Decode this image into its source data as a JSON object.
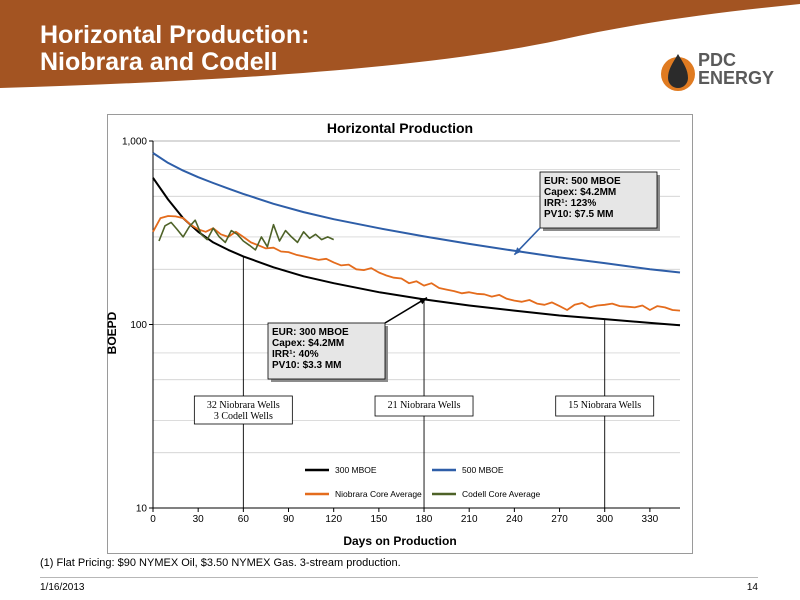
{
  "slide": {
    "title_line1": "Horizontal Production:",
    "title_line2": "Niobrara and Codell",
    "footnote": "(1) Flat Pricing: $90 NYMEX Oil, $3.50 NYMEX Gas. 3-stream production.",
    "date": "1/16/2013",
    "page_number": "14"
  },
  "logo": {
    "line1": "PDC",
    "line2": "ENERGY"
  },
  "colors": {
    "header_brown": "#a35422",
    "logo_orange": "#e07b21",
    "series_300": "#000000",
    "series_500": "#2e5ea8",
    "series_niobrara": "#e46c1d",
    "series_codell": "#4e6228"
  },
  "chart_data": {
    "type": "line",
    "title": "Horizontal Production",
    "xlabel": "Days on Production",
    "ylabel": "BOEPD",
    "y_scale": "log",
    "xlim": [
      0,
      350
    ],
    "ylim": [
      10,
      1000
    ],
    "x_ticks": [
      0,
      30,
      60,
      90,
      120,
      150,
      180,
      210,
      240,
      270,
      300,
      330
    ],
    "y_ticks": [
      {
        "value": 10,
        "label": "10"
      },
      {
        "value": 100,
        "label": "100"
      },
      {
        "value": 1000,
        "label": "1,000"
      }
    ],
    "legend_position": "bottom-center",
    "series": [
      {
        "name": "300 MBOE",
        "color": "#000000",
        "x": [
          0,
          10,
          20,
          30,
          40,
          50,
          60,
          80,
          100,
          120,
          150,
          180,
          210,
          240,
          270,
          300,
          330,
          350
        ],
        "y": [
          630,
          480,
          380,
          320,
          280,
          255,
          235,
          205,
          183,
          168,
          150,
          137,
          127,
          119,
          112,
          107,
          102,
          99
        ]
      },
      {
        "name": "500 MBOE",
        "color": "#2e5ea8",
        "x": [
          0,
          10,
          20,
          30,
          40,
          50,
          60,
          80,
          100,
          120,
          150,
          180,
          210,
          240,
          270,
          300,
          330,
          350
        ],
        "y": [
          860,
          760,
          690,
          635,
          590,
          550,
          515,
          455,
          410,
          375,
          335,
          302,
          275,
          252,
          232,
          216,
          200,
          192
        ]
      },
      {
        "name": "Niobrara Core Average",
        "color": "#e46c1d",
        "x": [
          0,
          5,
          10,
          15,
          20,
          25,
          30,
          35,
          40,
          45,
          50,
          55,
          60,
          65,
          70,
          75,
          80,
          85,
          90,
          95,
          100,
          105,
          110,
          115,
          120,
          125,
          130,
          135,
          140,
          145,
          150,
          155,
          160,
          165,
          170,
          175,
          180,
          185,
          190,
          195,
          200,
          205,
          210,
          215,
          220,
          225,
          230,
          235,
          240,
          245,
          250,
          255,
          260,
          265,
          270,
          275,
          280,
          285,
          290,
          295,
          300,
          305,
          310,
          315,
          320,
          325,
          330,
          335,
          340,
          345,
          350
        ],
        "y": [
          320,
          380,
          390,
          388,
          380,
          350,
          330,
          320,
          335,
          310,
          300,
          320,
          300,
          280,
          270,
          260,
          262,
          250,
          248,
          240,
          235,
          230,
          225,
          228,
          218,
          210,
          212,
          200,
          198,
          203,
          192,
          185,
          180,
          178,
          168,
          172,
          163,
          168,
          158,
          155,
          152,
          148,
          150,
          147,
          146,
          142,
          145,
          138,
          135,
          133,
          136,
          130,
          128,
          132,
          126,
          120,
          128,
          131,
          124,
          127,
          128,
          130,
          126,
          125,
          124,
          127,
          120,
          126,
          124,
          120,
          119
        ]
      },
      {
        "name": "Codell Core Average",
        "color": "#4e6228",
        "x": [
          4,
          8,
          12,
          16,
          20,
          24,
          28,
          32,
          36,
          40,
          44,
          48,
          52,
          56,
          60,
          64,
          68,
          72,
          76,
          80,
          84,
          88,
          92,
          96,
          100,
          104,
          108,
          112,
          116,
          120
        ],
        "y": [
          285,
          345,
          360,
          330,
          300,
          340,
          370,
          310,
          290,
          335,
          300,
          280,
          325,
          310,
          285,
          270,
          255,
          300,
          265,
          350,
          285,
          325,
          300,
          280,
          320,
          295,
          310,
          290,
          300,
          290
        ]
      }
    ],
    "annotations": [
      {
        "label": "EUR: 500 MBOE",
        "lines": [
          "EUR: 500 MBOE",
          "Capex: $4.2MM",
          "IRR¹: 123%",
          "PV10: $7.5 MM"
        ],
        "arrow_to": {
          "x": 240,
          "y": 240
        }
      },
      {
        "label": "EUR: 300 MBOE",
        "lines": [
          "EUR: 300 MBOE",
          "Capex: $4.2MM",
          "IRR¹: 40%",
          "PV10: $3.3 MM"
        ],
        "arrow_to": {
          "x": 182,
          "y": 140
        }
      }
    ],
    "well_labels": [
      {
        "lines": [
          "32 Niobrara Wells",
          "3 Codell Wells"
        ],
        "marker_x": 60
      },
      {
        "lines": [
          "21 Niobrara Wells"
        ],
        "marker_x": 180
      },
      {
        "lines": [
          "15 Niobrara Wells"
        ],
        "marker_x": 300
      }
    ]
  }
}
